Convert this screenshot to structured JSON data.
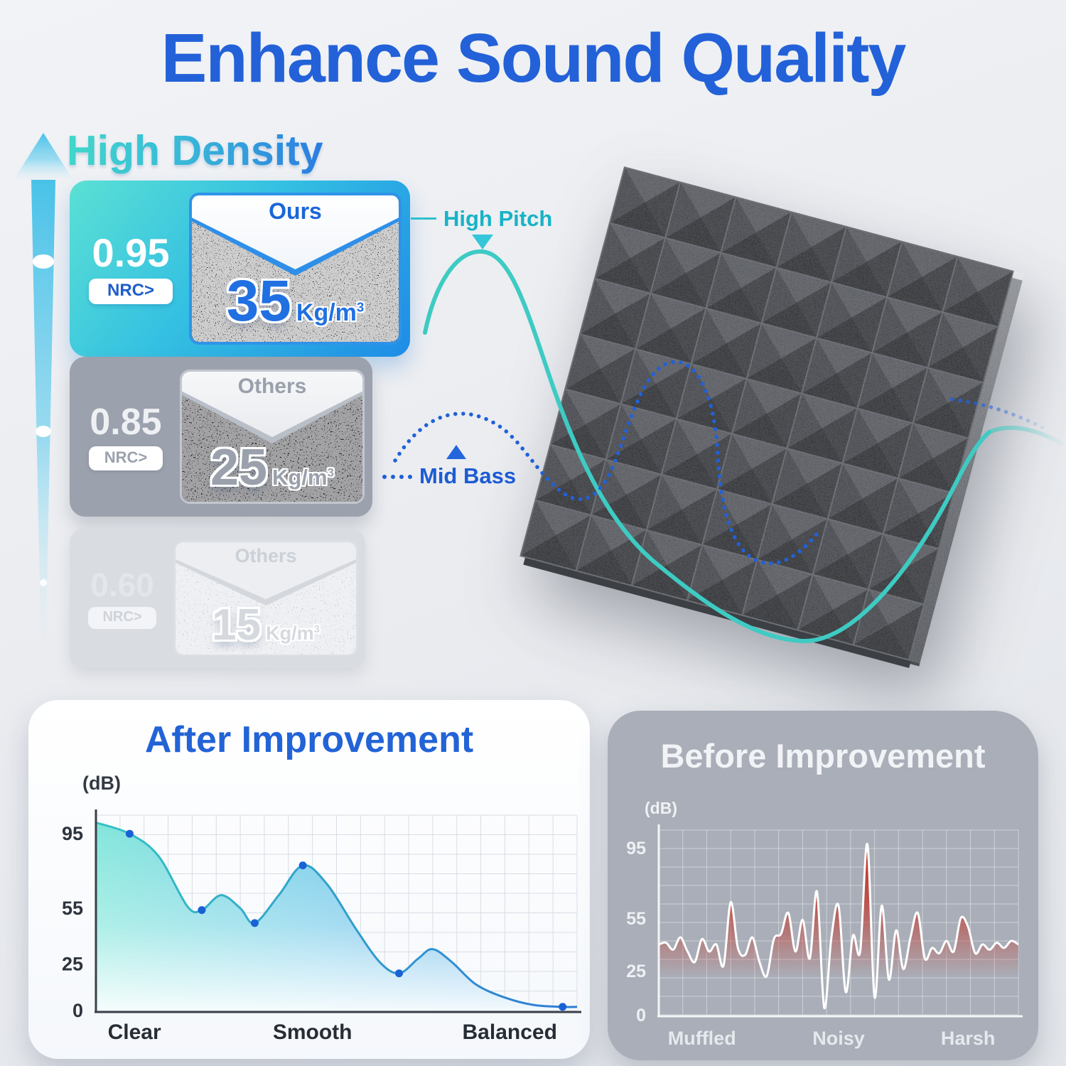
{
  "page": {
    "title": "Enhance Sound Quality",
    "colors": {
      "title_blue": "#2361d8",
      "teal_accent": "#3fd4c9",
      "blue_accent": "#1e5ed6",
      "ours_card_gradient": [
        "#5be0d4",
        "#1e8ce6"
      ],
      "others_card_gray": "#9ba1ad",
      "faded_card_gray": "#d9dce1",
      "before_card_gray": "#a9aeb8",
      "noise_red": "#c41c10"
    }
  },
  "density": {
    "heading": "High Density",
    "cards": [
      {
        "nrc_value": "0.95",
        "nrc_label": "NRC>",
        "tag": "Ours",
        "density_value": "35",
        "density_unit": "Kg/m",
        "density_exp": "3"
      },
      {
        "nrc_value": "0.85",
        "nrc_label": "NRC>",
        "tag": "Others",
        "density_value": "25",
        "density_unit": "Kg/m",
        "density_exp": "3"
      },
      {
        "nrc_value": "0.60",
        "nrc_label": "NRC>",
        "tag": "Others",
        "density_value": "15",
        "density_unit": "Kg/m",
        "density_exp": "3"
      }
    ]
  },
  "annotations": {
    "high_pitch": "High Pitch",
    "mid_bass": "Mid Bass"
  },
  "chart_data": [
    {
      "type": "area",
      "title": "After Improvement",
      "ylabel": "(dB)",
      "ylim": [
        0,
        105
      ],
      "y_ticks": [
        95,
        55,
        25,
        0
      ],
      "categories": [
        "Clear",
        "Smooth",
        "Balanced"
      ],
      "category_pos": [
        8,
        45,
        86
      ],
      "grid": true,
      "legend": "none",
      "points": [
        [
          0,
          101
        ],
        [
          7,
          95,
          1
        ],
        [
          13,
          83
        ],
        [
          19,
          56
        ],
        [
          22,
          54,
          1
        ],
        [
          26,
          62
        ],
        [
          30,
          55
        ],
        [
          33,
          47,
          1
        ],
        [
          38,
          62
        ],
        [
          43,
          78,
          1
        ],
        [
          48,
          68
        ],
        [
          54,
          44
        ],
        [
          59,
          26
        ],
        [
          63,
          20,
          1
        ],
        [
          67,
          28
        ],
        [
          70,
          33
        ],
        [
          74,
          26
        ],
        [
          79,
          14
        ],
        [
          85,
          7
        ],
        [
          91,
          3
        ],
        [
          97,
          2,
          1
        ],
        [
          100,
          2
        ]
      ],
      "colors": {
        "grid": "#d9dde4",
        "axis": "#3a4049",
        "tick": "#2e343d",
        "label": "#272d35",
        "stroke_from": "#35c2c4",
        "stroke_to": "#2e7cd6",
        "fill_from": "#82e6db",
        "fill_mid": "#79cdea",
        "fill_to": "#5fa9e9",
        "marker": "#1a61d6"
      }
    },
    {
      "type": "area",
      "title": "Before Improvement",
      "ylabel": "(dB)",
      "ylim": [
        0,
        105
      ],
      "y_ticks": [
        95,
        55,
        25,
        0
      ],
      "categories": [
        "Muffled",
        "Noisy",
        "Harsh"
      ],
      "category_pos": [
        12,
        50,
        86
      ],
      "grid": true,
      "legend": "none",
      "points": [
        [
          0,
          40
        ],
        [
          2,
          41
        ],
        [
          4,
          37
        ],
        [
          6,
          44
        ],
        [
          8,
          36
        ],
        [
          10,
          30
        ],
        [
          12,
          43
        ],
        [
          14,
          36
        ],
        [
          16,
          40
        ],
        [
          18,
          28
        ],
        [
          20,
          64
        ],
        [
          22,
          38
        ],
        [
          24,
          34
        ],
        [
          26,
          44
        ],
        [
          28,
          30
        ],
        [
          30,
          22
        ],
        [
          32,
          43
        ],
        [
          34,
          46
        ],
        [
          36,
          58
        ],
        [
          38,
          36
        ],
        [
          40,
          54
        ],
        [
          42,
          32
        ],
        [
          44,
          70
        ],
        [
          46,
          4
        ],
        [
          48,
          44
        ],
        [
          50,
          62
        ],
        [
          52,
          13
        ],
        [
          54,
          45
        ],
        [
          56,
          36
        ],
        [
          58,
          97
        ],
        [
          60,
          10
        ],
        [
          62,
          62
        ],
        [
          64,
          20
        ],
        [
          66,
          48
        ],
        [
          68,
          26
        ],
        [
          70,
          44
        ],
        [
          72,
          58
        ],
        [
          74,
          32
        ],
        [
          76,
          38
        ],
        [
          78,
          35
        ],
        [
          80,
          42
        ],
        [
          82,
          36
        ],
        [
          84,
          55
        ],
        [
          86,
          50
        ],
        [
          88,
          35
        ],
        [
          90,
          40
        ],
        [
          92,
          37
        ],
        [
          94,
          41
        ],
        [
          96,
          38
        ],
        [
          98,
          42
        ],
        [
          100,
          40
        ]
      ],
      "colors": {
        "grid": "rgba(255,255,255,0.42)",
        "axis": "#f4f5f7",
        "tick": "#eef0f3",
        "label": "#e6e9ed",
        "stroke": "#ffffff",
        "fill_top": "#c41c10",
        "fill_mid": "#c2392e"
      }
    }
  ]
}
